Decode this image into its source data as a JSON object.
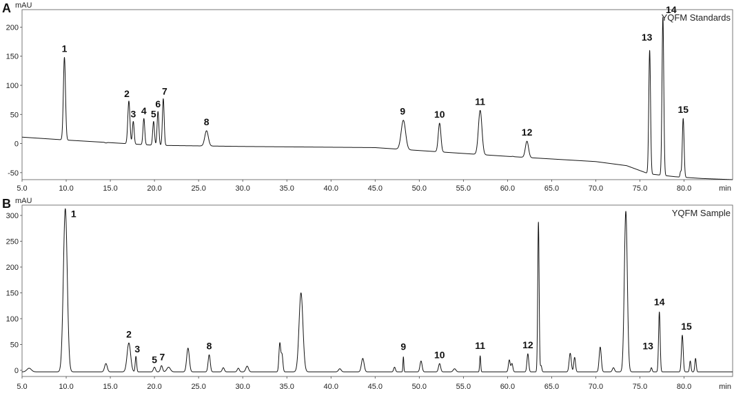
{
  "chart_data": [
    {
      "type": "line",
      "panel_letter": "A",
      "title": "YQFM Standards",
      "ylabel": "mAU",
      "xlabel": "min",
      "xlim": [
        5.0,
        85.5
      ],
      "ylim": [
        -62,
        230
      ],
      "x_ticks": [
        "5.0",
        "10.0",
        "15.0",
        "20.0",
        "25.0",
        "30.0",
        "35.0",
        "40.0",
        "45.0",
        "50.0",
        "55.0",
        "60.0",
        "65.0",
        "70.0",
        "75.0",
        "80.0"
      ],
      "y_ticks": [
        -50,
        0,
        50,
        100,
        150,
        200
      ],
      "baseline": [
        [
          5.0,
          11
        ],
        [
          10,
          6
        ],
        [
          20,
          -3
        ],
        [
          30,
          -5
        ],
        [
          45,
          -7
        ],
        [
          60,
          -22
        ],
        [
          70,
          -31
        ],
        [
          73.5,
          -38
        ],
        [
          76,
          -52
        ],
        [
          79,
          -57
        ],
        [
          82,
          -60
        ],
        [
          85.5,
          -62
        ]
      ],
      "peaks": [
        {
          "label": "1",
          "x": 9.8,
          "y": 148,
          "w": 0.12
        },
        {
          "label": "2",
          "x": 17.1,
          "y": 73,
          "w": 0.12
        },
        {
          "label": "3",
          "x": 17.6,
          "y": 38,
          "w": 0.1
        },
        {
          "label": "4",
          "x": 18.8,
          "y": 43,
          "w": 0.1
        },
        {
          "label": "5",
          "x": 19.9,
          "y": 38,
          "w": 0.1
        },
        {
          "label": "6",
          "x": 20.4,
          "y": 55,
          "w": 0.1
        },
        {
          "label": "7",
          "x": 21.0,
          "y": 77,
          "w": 0.1
        },
        {
          "label": "8",
          "x": 25.9,
          "y": 22,
          "w": 0.2
        },
        {
          "label": "9",
          "x": 48.2,
          "y": 40,
          "w": 0.25
        },
        {
          "label": "10",
          "x": 52.3,
          "y": 35,
          "w": 0.15
        },
        {
          "label": "11",
          "x": 56.9,
          "y": 57,
          "w": 0.2
        },
        {
          "label": "12",
          "x": 62.2,
          "y": 4,
          "w": 0.18
        },
        {
          "label": "13",
          "x": 76.1,
          "y": 160,
          "w": 0.1
        },
        {
          "label": "14",
          "x": 77.6,
          "y": 217,
          "w": 0.1
        },
        {
          "label": "15",
          "x": 79.9,
          "y": 43,
          "w": 0.1
        }
      ],
      "minor_peaks": [
        {
          "x": 14.5,
          "y": 1,
          "w": 0.1
        },
        {
          "x": 60.6,
          "y": -22,
          "w": 0.1
        },
        {
          "x": 79.6,
          "y": -49,
          "w": 0.06
        }
      ]
    },
    {
      "type": "line",
      "panel_letter": "B",
      "title": "YQFM Sample",
      "ylabel": "mAU",
      "xlabel": "min",
      "xlim": [
        5.0,
        85.5
      ],
      "ylim": [
        -12,
        320
      ],
      "x_ticks": [
        "5.0",
        "10.0",
        "15.0",
        "20.0",
        "25.0",
        "30.0",
        "35.0",
        "40.0",
        "45.0",
        "50.0",
        "55.0",
        "60.0",
        "65.0",
        "70.0",
        "75.0",
        "80.0"
      ],
      "y_ticks": [
        0,
        50,
        100,
        150,
        200,
        250,
        300
      ],
      "baseline": [
        [
          5.0,
          -3
        ],
        [
          85.5,
          -3
        ]
      ],
      "peaks": [
        {
          "label": "1",
          "x": 9.9,
          "y": 313,
          "w": 0.22
        },
        {
          "label": "2",
          "x": 17.1,
          "y": 53,
          "w": 0.2
        },
        {
          "label": "3",
          "x": 17.9,
          "y": 27,
          "w": 0.08
        },
        {
          "label": "5",
          "x": 20.0,
          "y": 6,
          "w": 0.12
        },
        {
          "label": "7",
          "x": 20.8,
          "y": 9,
          "w": 0.12
        },
        {
          "label": "8",
          "x": 26.2,
          "y": 30,
          "w": 0.12
        },
        {
          "label": "9",
          "x": 48.2,
          "y": 26,
          "w": 0.05
        },
        {
          "label": "10",
          "x": 52.3,
          "y": 13,
          "w": 0.12
        },
        {
          "label": "11",
          "x": 56.9,
          "y": 28,
          "w": 0.06
        },
        {
          "label": "12",
          "x": 62.3,
          "y": 32,
          "w": 0.1
        },
        {
          "label": "13",
          "x": 76.3,
          "y": 5,
          "w": 0.08
        },
        {
          "label": "14",
          "x": 77.2,
          "y": 113,
          "w": 0.09
        },
        {
          "label": "15",
          "x": 79.8,
          "y": 68,
          "w": 0.1
        }
      ],
      "minor_peaks": [
        {
          "x": 5.8,
          "y": 4,
          "w": 0.25
        },
        {
          "x": 14.5,
          "y": 13,
          "w": 0.15
        },
        {
          "x": 21.6,
          "y": 6,
          "w": 0.2
        },
        {
          "x": 23.8,
          "y": 43,
          "w": 0.15
        },
        {
          "x": 27.8,
          "y": 5,
          "w": 0.12
        },
        {
          "x": 29.5,
          "y": 4,
          "w": 0.12
        },
        {
          "x": 30.5,
          "y": 8,
          "w": 0.15
        },
        {
          "x": 34.2,
          "y": 52,
          "w": 0.1
        },
        {
          "x": 34.45,
          "y": 30,
          "w": 0.1
        },
        {
          "x": 36.6,
          "y": 150,
          "w": 0.22
        },
        {
          "x": 41.0,
          "y": 3,
          "w": 0.15
        },
        {
          "x": 43.6,
          "y": 23,
          "w": 0.15
        },
        {
          "x": 47.2,
          "y": 6,
          "w": 0.1
        },
        {
          "x": 50.2,
          "y": 18,
          "w": 0.12
        },
        {
          "x": 54.0,
          "y": 3,
          "w": 0.15
        },
        {
          "x": 60.2,
          "y": 20,
          "w": 0.1
        },
        {
          "x": 60.5,
          "y": 13,
          "w": 0.1
        },
        {
          "x": 63.5,
          "y": 287,
          "w": 0.08
        },
        {
          "x": 63.8,
          "y": 9,
          "w": 0.08
        },
        {
          "x": 67.1,
          "y": 33,
          "w": 0.12
        },
        {
          "x": 67.6,
          "y": 25,
          "w": 0.1
        },
        {
          "x": 70.5,
          "y": 45,
          "w": 0.12
        },
        {
          "x": 72.0,
          "y": 5,
          "w": 0.12
        },
        {
          "x": 73.4,
          "y": 308,
          "w": 0.17
        },
        {
          "x": 80.7,
          "y": 18,
          "w": 0.08
        },
        {
          "x": 81.3,
          "y": 23,
          "w": 0.08
        }
      ]
    }
  ]
}
